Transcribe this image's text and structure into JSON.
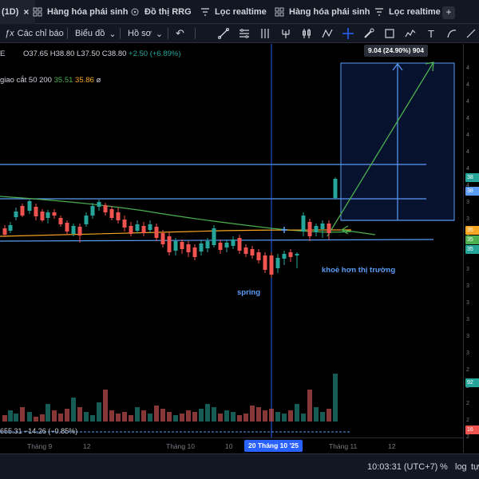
{
  "tabs": {
    "active": {
      "label": "(1D)",
      "close": "×"
    },
    "items": [
      {
        "label": "Hàng hóa phái sinh",
        "icon": "grid-icon"
      },
      {
        "label": "Đồ thị RRG",
        "icon": "rrg-icon"
      },
      {
        "label": "Lọc realtime",
        "icon": "filter-icon"
      },
      {
        "label": "Hàng hóa phái sinh",
        "icon": "grid-icon"
      },
      {
        "label": "Lọc realtime",
        "icon": "filter-icon"
      }
    ],
    "add": "+"
  },
  "toolbar": {
    "indicators_label": "Các chỉ báo",
    "indicators_prefix": "ƒx",
    "chart_label": "Biểu đồ",
    "profile_label": "Hồ sơ",
    "chevron": "⌄",
    "undo": "↶",
    "text_tool": "T",
    "tools": [
      "trend-line-icon",
      "fib-retracement-icon",
      "vertical-line-icon",
      "pitchfork-icon",
      "zigzag-icon",
      "crosshair-icon",
      "brush-icon",
      "rectangle-icon",
      "path-icon",
      "text-icon",
      "arc-icon",
      "measure-icon"
    ]
  },
  "legend": {
    "symbol_fragment": "E",
    "ohlc": "O37.65 H38.80 L37.50 C38.80",
    "change": "+2.50 (+6.89%)",
    "ma_label": "giao cắt 50 200",
    "ma1": "35.51",
    "ma2": "35.86",
    "ma_symbol": "ø",
    "volume_line": "655.31 −14.26 (−0.85%)"
  },
  "measure": {
    "label": "9.04 (24.90%) 904"
  },
  "annotations": {
    "spring": "spring",
    "stronger": "khoẻ hơn thị trường"
  },
  "time_axis": {
    "labels": [
      "Tháng 9",
      "12",
      "Tháng 10",
      "10",
      "Tháng 11",
      "12"
    ],
    "crosshair": "20 Tháng 10 '25"
  },
  "price_scale": {
    "ticks": [
      "4",
      "4",
      "4",
      "4",
      "4",
      "4",
      "4",
      "4",
      "3",
      "3",
      "3",
      "3",
      "3",
      "3",
      "3",
      "3",
      "3",
      "3",
      "2",
      "2",
      "2",
      "2",
      "2"
    ],
    "badges": [
      {
        "text": "38",
        "color": "#26a69a"
      },
      {
        "text": "38",
        "color": "#5b9cf6"
      },
      {
        "text": "35",
        "color": "#f5a623"
      },
      {
        "text": "35",
        "color": "#4caf50"
      },
      {
        "text": "35",
        "color": "#26a69a"
      },
      {
        "text": "92",
        "color": "#26a69a"
      },
      {
        "text": "16",
        "color": "#ef5350"
      }
    ]
  },
  "statusbar": {
    "time": "10:03:31 (UTC+7)",
    "percent": "%",
    "log": "log",
    "auto": "tự"
  },
  "colors": {
    "up": "#26a69a",
    "down": "#ef5350",
    "blue_line": "#5b9cf6",
    "green_line": "#4caf50",
    "orange_line": "#f5a623"
  }
}
